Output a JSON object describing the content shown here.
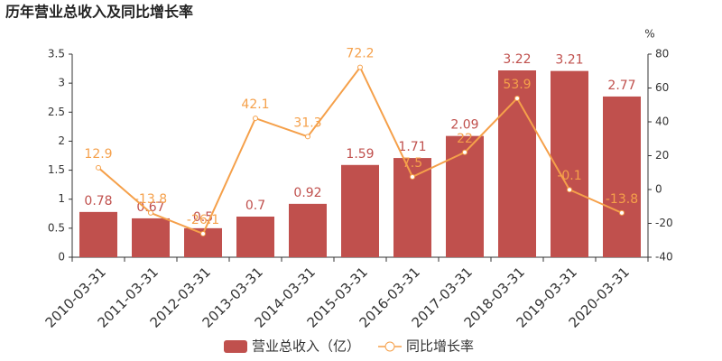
{
  "chart_data": {
    "type": "bar_line",
    "title": "历年营业总收入及同比增长率",
    "categories": [
      "2010-03-31",
      "2011-03-31",
      "2012-03-31",
      "2013-03-31",
      "2014-03-31",
      "2015-03-31",
      "2016-03-31",
      "2017-03-31",
      "2018-03-31",
      "2019-03-31",
      "2020-03-31"
    ],
    "series": [
      {
        "name": "营业总收入（亿）",
        "type": "bar",
        "color": "#c0504d",
        "values": [
          0.78,
          0.67,
          0.5,
          0.7,
          0.92,
          1.59,
          1.71,
          2.09,
          3.22,
          3.21,
          2.77
        ]
      },
      {
        "name": "同比增长率",
        "type": "line",
        "axis": "y2",
        "color": "#f5a04a",
        "values": [
          12.9,
          -13.8,
          -26.1,
          42.1,
          31.3,
          72.2,
          7.5,
          22,
          53.9,
          -0.1,
          -13.8
        ]
      }
    ],
    "ylim": [
      0,
      3.5
    ],
    "yticks": [
      0,
      0.5,
      1,
      1.5,
      2,
      2.5,
      3,
      3.5
    ],
    "y2lim": [
      -40,
      80
    ],
    "y2ticks": [
      -40,
      -20,
      0,
      20,
      40,
      60,
      80
    ],
    "y2_unit": "%",
    "legend": "bottom"
  }
}
